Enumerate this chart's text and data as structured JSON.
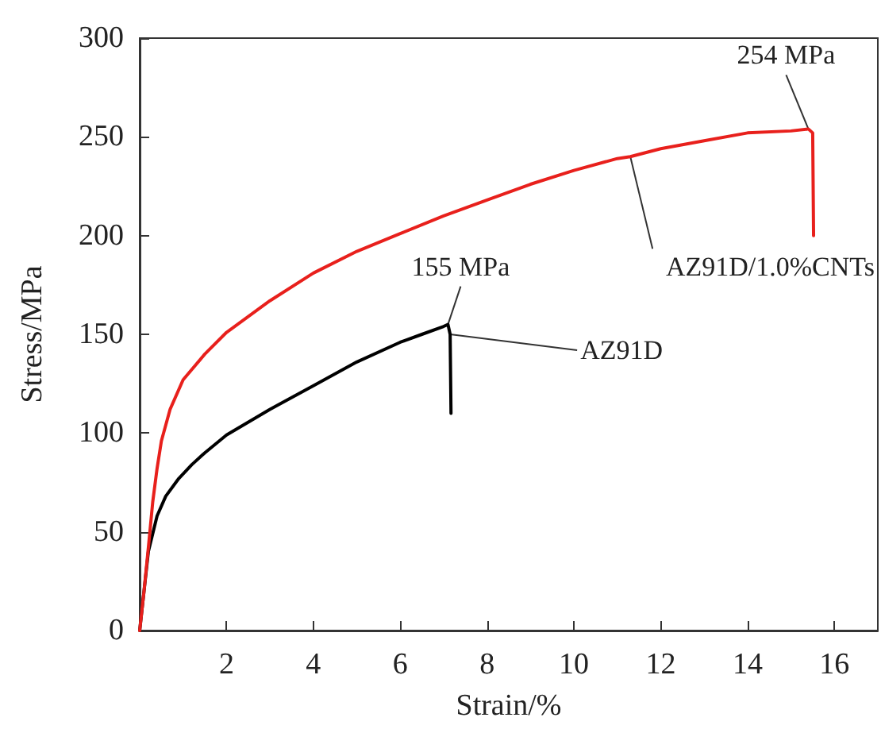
{
  "chart_data": {
    "type": "line",
    "xlabel": "Strain/%",
    "ylabel": "Stress/MPa",
    "xlim": [
      0,
      17
    ],
    "xticks": [
      2,
      4,
      6,
      8,
      10,
      12,
      14,
      16
    ],
    "ylim": [
      0,
      300
    ],
    "yticks": [
      0,
      50,
      100,
      150,
      200,
      250,
      300
    ],
    "grid": false,
    "legend": false,
    "marker": "none",
    "line_style": "solid",
    "series": [
      {
        "name": "AZ91D",
        "color": "#000000",
        "x": [
          0,
          0.2,
          0.4,
          0.6,
          0.9,
          1.2,
          1.5,
          2,
          3,
          4,
          5,
          6,
          6.5,
          7,
          7.1,
          7.15,
          7.17
        ],
        "values": [
          0,
          40,
          58,
          68,
          77,
          84,
          90,
          99,
          112,
          124,
          136,
          146,
          150,
          154,
          155,
          150,
          110
        ]
      },
      {
        "name": "AZ91D/1.0%CNTs",
        "color": "#e8201c",
        "x": [
          0,
          0.1,
          0.2,
          0.3,
          0.4,
          0.5,
          0.7,
          1,
          1.5,
          2,
          3,
          4,
          5,
          6,
          7,
          8,
          9,
          10,
          11,
          11.3,
          12,
          13,
          14,
          15,
          15.4,
          15.5,
          15.52
        ],
        "values": [
          0,
          20,
          42,
          65,
          82,
          96,
          112,
          127,
          140,
          151,
          167,
          181,
          192,
          201,
          210,
          218,
          226,
          233,
          239,
          240,
          244,
          248,
          252,
          253,
          254,
          252,
          200
        ]
      }
    ],
    "annotations": [
      {
        "text": "155 MPa",
        "x": 7.1,
        "y": 155
      },
      {
        "text": "254 MPa",
        "x": 15.4,
        "y": 254
      }
    ]
  }
}
